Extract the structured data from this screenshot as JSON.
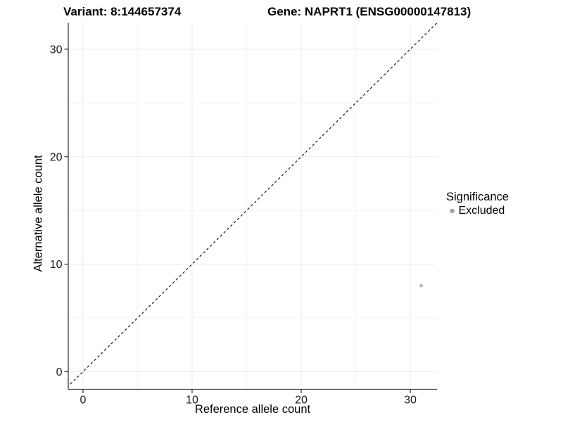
{
  "chart_data": {
    "type": "scatter",
    "titles": {
      "left": "Variant: 8:144657374",
      "right": "Gene: NAPRT1 (ENSG00000147813)"
    },
    "xlabel": "Reference allele count",
    "ylabel": "Alternative allele count",
    "xlim": [
      -1.35,
      32.45
    ],
    "ylim": [
      -1.64,
      32.45
    ],
    "x_ticks": [
      0,
      10,
      20,
      30
    ],
    "y_ticks": [
      0,
      10,
      20,
      30
    ],
    "x_minor_gridlines": [
      5,
      15,
      25
    ],
    "y_minor_gridlines": [
      5,
      15,
      25
    ],
    "grid": "major+minor",
    "identity_line": {
      "slope": 1,
      "intercept": 0,
      "style": "dashed"
    },
    "series": [
      {
        "name": "Excluded",
        "color": "#bcbcbc",
        "points": [
          {
            "x": 31,
            "y": 8
          }
        ]
      }
    ],
    "legend": {
      "title": "Significance",
      "position": "right",
      "items": [
        {
          "label": "Excluded",
          "color": "#a6a6a6"
        }
      ]
    }
  },
  "colors": {
    "background": "#ffffff",
    "grid_major": "#ebebeb",
    "grid_minor": "#f3f3f3",
    "axis_line": "#3d3d3d",
    "tick_label": "#1a1a1a",
    "identity_line": "#1a1a1a"
  }
}
